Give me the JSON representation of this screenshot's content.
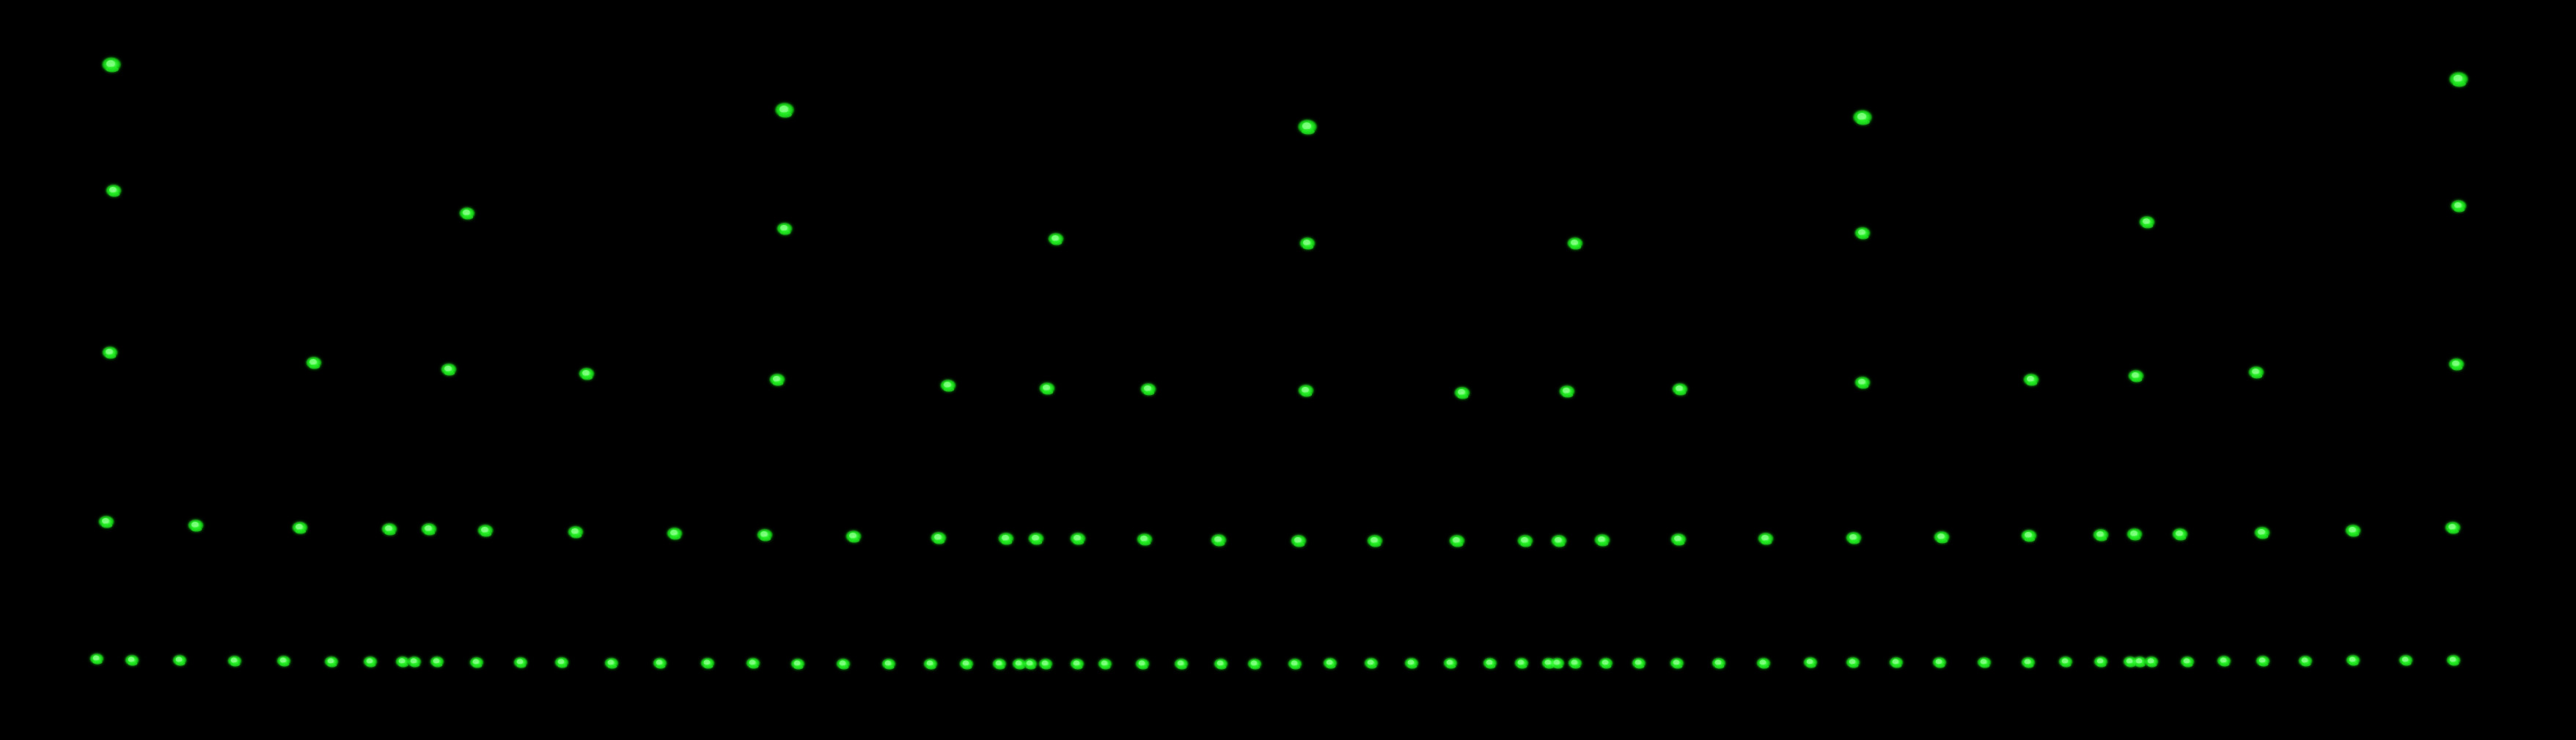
{
  "image": {
    "description_visible_text": "",
    "background_color": "#000000",
    "spot_colors": {
      "core": "#7dff7d",
      "mid": "#22ee22",
      "edge": "#0a8f0a"
    }
  },
  "rows": [
    {
      "name": "row-1",
      "spot_count": 5
    },
    {
      "name": "row-2",
      "spot_count": 8
    },
    {
      "name": "row-3",
      "spot_count": 19
    },
    {
      "name": "row-4",
      "spot_count": 29
    },
    {
      "name": "row-5",
      "spot_count": 63
    }
  ]
}
